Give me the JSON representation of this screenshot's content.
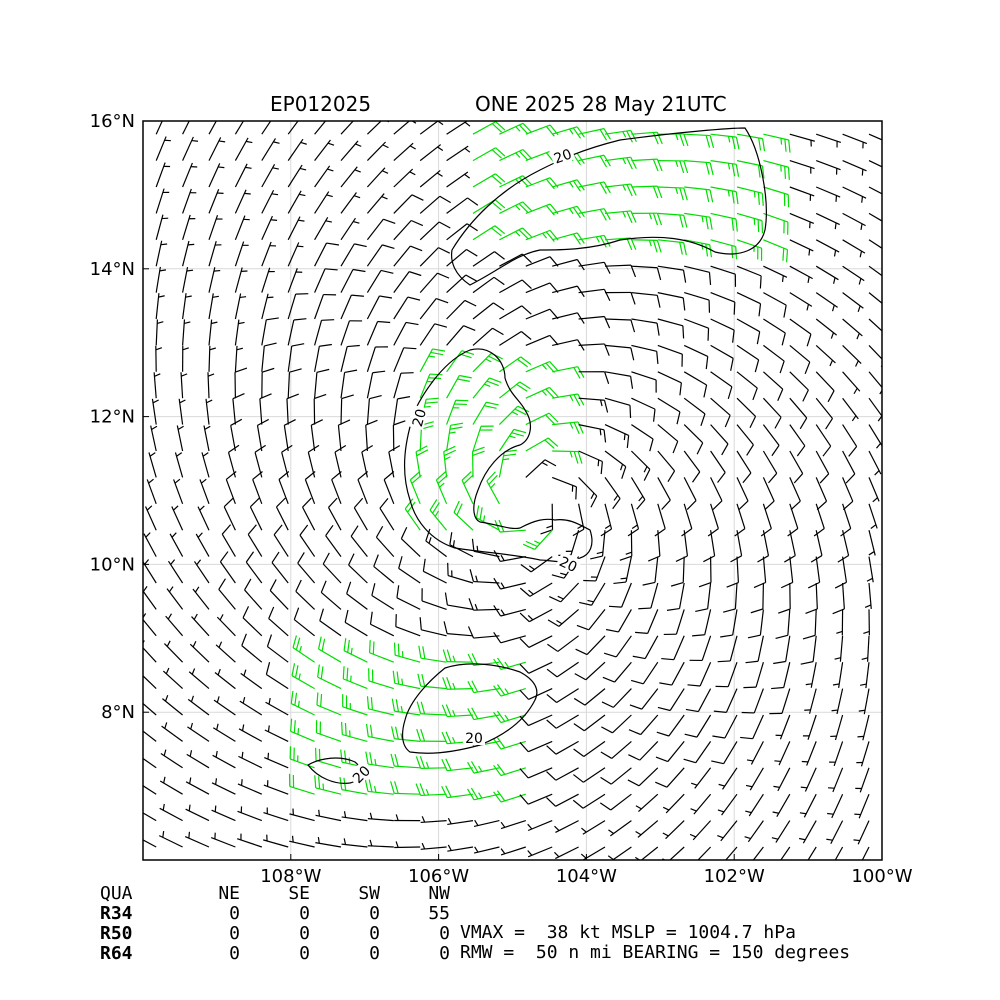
{
  "header": {
    "storm_id": "EP012025",
    "storm_title": "ONE 2025 28 May 21UTC"
  },
  "chart_data": {
    "type": "wind-barb-map",
    "lon_range": [
      -110,
      -100
    ],
    "lat_range": [
      6,
      16
    ],
    "x_ticks": [
      {
        "value": -108,
        "label": "108°W"
      },
      {
        "value": -106,
        "label": "106°W"
      },
      {
        "value": -104,
        "label": "104°W"
      },
      {
        "value": -102,
        "label": "102°W"
      },
      {
        "value": -100,
        "label": "100°W"
      }
    ],
    "y_ticks": [
      {
        "value": 8,
        "label": "8°N"
      },
      {
        "value": 10,
        "label": "10°N"
      },
      {
        "value": 12,
        "label": "12°N"
      },
      {
        "value": 14,
        "label": "14°N"
      },
      {
        "value": 16,
        "label": "16°N"
      }
    ],
    "grid": true,
    "contour_level_label": "20",
    "barb_colors": {
      "below_threshold": "#000000",
      "above_threshold": "#00dd00"
    },
    "storm_center": {
      "lon": -104.7,
      "lat": 10.9
    },
    "vmax_kt": 38
  },
  "table": {
    "columns": [
      "QUA",
      "NE",
      "SE",
      "SW",
      "NW"
    ],
    "rows": [
      {
        "label": "R34",
        "values": [
          "0",
          "0",
          "0",
          "55"
        ]
      },
      {
        "label": "R50",
        "values": [
          "0",
          "0",
          "0",
          "0"
        ]
      },
      {
        "label": "R64",
        "values": [
          "0",
          "0",
          "0",
          "0"
        ]
      }
    ]
  },
  "info": {
    "line1": "VMAX =  38 kt MSLP = 1004.7 hPa",
    "line2": "RMW =  50 n mi BEARING = 150 degrees"
  }
}
